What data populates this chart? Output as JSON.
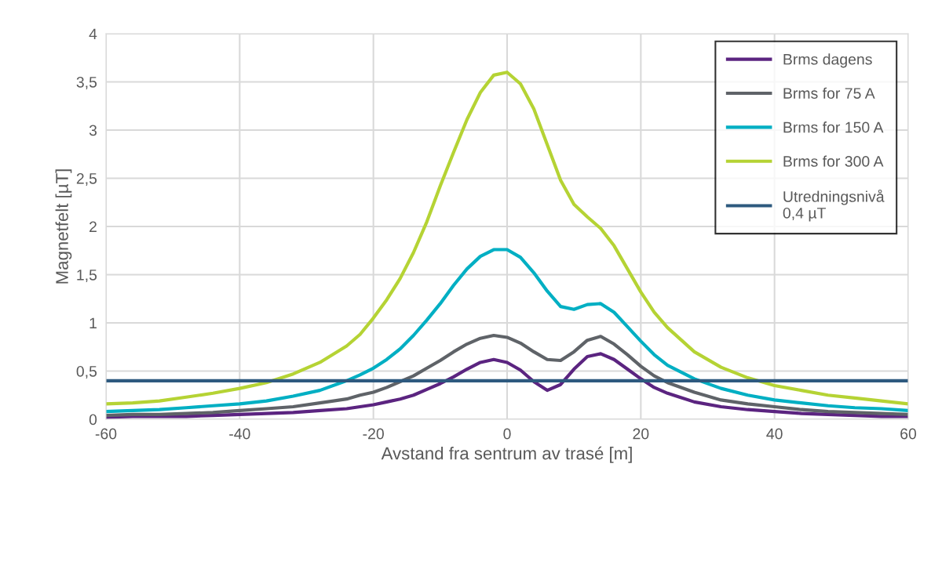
{
  "chart_data": {
    "type": "line",
    "xlabel": "Avstand fra sentrum av trasé [m]",
    "ylabel": "Magnetfelt [µT]",
    "x": [
      -60,
      -56,
      -52,
      -48,
      -44,
      -40,
      -36,
      -32,
      -28,
      -24,
      -22,
      -20,
      -18,
      -16,
      -14,
      -12,
      -10,
      -8,
      -6,
      -4,
      -2,
      0,
      2,
      4,
      6,
      8,
      10,
      12,
      14,
      16,
      18,
      20,
      22,
      24,
      28,
      32,
      36,
      40,
      44,
      48,
      52,
      56,
      60
    ],
    "series": [
      {
        "name": "Brms dagens",
        "color": "#5b2480",
        "values": [
          0.02,
          0.03,
          0.03,
          0.03,
          0.04,
          0.05,
          0.06,
          0.07,
          0.09,
          0.11,
          0.13,
          0.15,
          0.18,
          0.21,
          0.25,
          0.31,
          0.37,
          0.44,
          0.52,
          0.59,
          0.62,
          0.59,
          0.51,
          0.39,
          0.3,
          0.36,
          0.52,
          0.65,
          0.68,
          0.62,
          0.52,
          0.42,
          0.33,
          0.27,
          0.18,
          0.13,
          0.1,
          0.08,
          0.06,
          0.05,
          0.04,
          0.03,
          0.03
        ]
      },
      {
        "name": "Brms for 75 A",
        "color": "#5f6368",
        "values": [
          0.04,
          0.05,
          0.05,
          0.06,
          0.07,
          0.09,
          0.11,
          0.13,
          0.17,
          0.21,
          0.25,
          0.28,
          0.33,
          0.39,
          0.45,
          0.53,
          0.61,
          0.7,
          0.78,
          0.84,
          0.87,
          0.85,
          0.79,
          0.7,
          0.62,
          0.61,
          0.7,
          0.82,
          0.86,
          0.78,
          0.67,
          0.55,
          0.45,
          0.38,
          0.28,
          0.2,
          0.16,
          0.13,
          0.1,
          0.08,
          0.07,
          0.06,
          0.05
        ]
      },
      {
        "name": "Brms for 150 A",
        "color": "#00afc3",
        "values": [
          0.08,
          0.09,
          0.1,
          0.12,
          0.14,
          0.16,
          0.19,
          0.24,
          0.3,
          0.4,
          0.46,
          0.53,
          0.62,
          0.73,
          0.87,
          1.03,
          1.2,
          1.39,
          1.56,
          1.69,
          1.76,
          1.76,
          1.68,
          1.52,
          1.33,
          1.17,
          1.14,
          1.19,
          1.2,
          1.11,
          0.96,
          0.81,
          0.67,
          0.56,
          0.42,
          0.32,
          0.25,
          0.2,
          0.17,
          0.14,
          0.12,
          0.11,
          0.09
        ]
      },
      {
        "name": "Brms for 300 A",
        "color": "#b5d334",
        "values": [
          0.16,
          0.17,
          0.19,
          0.23,
          0.27,
          0.32,
          0.38,
          0.47,
          0.59,
          0.76,
          0.88,
          1.05,
          1.24,
          1.46,
          1.73,
          2.05,
          2.42,
          2.77,
          3.11,
          3.39,
          3.57,
          3.6,
          3.48,
          3.22,
          2.85,
          2.48,
          2.23,
          2.1,
          1.98,
          1.8,
          1.56,
          1.32,
          1.11,
          0.95,
          0.7,
          0.54,
          0.43,
          0.35,
          0.3,
          0.25,
          0.22,
          0.19,
          0.16
        ]
      },
      {
        "name": "Utredningsnivå\n0,4 µT",
        "color": "#2e5a7f",
        "x": [
          -60,
          60
        ],
        "values": [
          0.4,
          0.4
        ]
      }
    ],
    "xlim": [
      -60,
      60
    ],
    "xticks": [
      -60,
      -40,
      -20,
      0,
      20,
      40,
      60
    ],
    "ylim": [
      0,
      4
    ],
    "yticks": [
      0,
      {
        "value": 0.5,
        "label": "0,5"
      },
      1,
      {
        "value": 1.5,
        "label": "1,5"
      },
      2,
      {
        "value": 2.5,
        "label": "2,5"
      },
      3,
      {
        "value": 3.5,
        "label": "3,5"
      },
      4
    ],
    "grid": true,
    "legend": "top right",
    "marker": "none",
    "line_style": "solid"
  }
}
